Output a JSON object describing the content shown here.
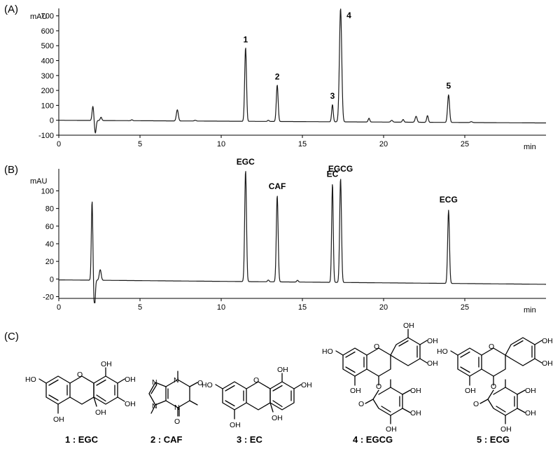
{
  "colors": {
    "trace": "#1a1a1a",
    "axis": "#000000",
    "background": "#ffffff"
  },
  "chart_data": [
    {
      "type": "line",
      "panel_label": "(A)",
      "ylabel": "mAU",
      "xlabel": "min",
      "xlim": [
        0,
        30
      ],
      "ylim": [
        -100,
        750
      ],
      "xticks": [
        0,
        5,
        10,
        15,
        20,
        25
      ],
      "yticks": [
        -100,
        0,
        100,
        200,
        300,
        400,
        500,
        600,
        700
      ],
      "baseline": {
        "start": 0,
        "end": -18
      },
      "peaks": [
        {
          "t": 2.1,
          "h": 95,
          "w": 0.05,
          "label": ""
        },
        {
          "t": 2.25,
          "h": -85,
          "w": 0.05,
          "label": ""
        },
        {
          "t": 2.6,
          "h": 22,
          "w": 0.05,
          "label": ""
        },
        {
          "t": 4.5,
          "h": 6,
          "w": 0.05,
          "label": ""
        },
        {
          "t": 7.3,
          "h": 75,
          "w": 0.06,
          "label": ""
        },
        {
          "t": 8.4,
          "h": 5,
          "w": 0.06,
          "label": ""
        },
        {
          "t": 11.5,
          "h": 495,
          "w": 0.055,
          "label": "1"
        },
        {
          "t": 12.9,
          "h": 8,
          "w": 0.05,
          "label": ""
        },
        {
          "t": 13.45,
          "h": 245,
          "w": 0.055,
          "label": "2"
        },
        {
          "t": 16.85,
          "h": 115,
          "w": 0.05,
          "label": "3"
        },
        {
          "t": 17.35,
          "h": 760,
          "w": 0.07,
          "label": "4"
        },
        {
          "t": 19.1,
          "h": 25,
          "w": 0.05,
          "label": ""
        },
        {
          "t": 20.5,
          "h": 12,
          "w": 0.06,
          "label": ""
        },
        {
          "t": 21.2,
          "h": 18,
          "w": 0.05,
          "label": ""
        },
        {
          "t": 22.0,
          "h": 40,
          "w": 0.06,
          "label": ""
        },
        {
          "t": 22.7,
          "h": 45,
          "w": 0.05,
          "label": ""
        },
        {
          "t": 24.0,
          "h": 185,
          "w": 0.06,
          "label": "5"
        },
        {
          "t": 25.4,
          "h": 6,
          "w": 0.06,
          "label": ""
        }
      ]
    },
    {
      "type": "line",
      "panel_label": "(B)",
      "ylabel": "mAU",
      "xlabel": "min",
      "xlim": [
        0,
        30
      ],
      "ylim": [
        -22,
        125
      ],
      "xticks": [
        0,
        5,
        10,
        15,
        20,
        25
      ],
      "yticks": [
        -20,
        0,
        20,
        40,
        60,
        80,
        100
      ],
      "baseline": {
        "start": -1,
        "end": -6
      },
      "peaks": [
        {
          "t": 2.05,
          "h": 90,
          "w": 0.045,
          "label": ""
        },
        {
          "t": 2.2,
          "h": -35,
          "w": 0.045,
          "label": ""
        },
        {
          "t": 2.55,
          "h": 12,
          "w": 0.06,
          "label": ""
        },
        {
          "t": 11.5,
          "h": 126,
          "w": 0.055,
          "label": "EGC"
        },
        {
          "t": 12.9,
          "h": 2,
          "w": 0.05,
          "label": ""
        },
        {
          "t": 13.45,
          "h": 98,
          "w": 0.055,
          "label": "CAF"
        },
        {
          "t": 14.7,
          "h": 2,
          "w": 0.05,
          "label": ""
        },
        {
          "t": 16.85,
          "h": 112,
          "w": 0.05,
          "label": "EC"
        },
        {
          "t": 17.35,
          "h": 118,
          "w": 0.055,
          "label": "EGCG"
        },
        {
          "t": 24.0,
          "h": 83,
          "w": 0.055,
          "label": "ECG"
        }
      ]
    }
  ],
  "structures_panel": {
    "panel_label": "(C)",
    "compounds": [
      {
        "id": "1",
        "caption": "1 : EGC"
      },
      {
        "id": "2",
        "caption": "2 : CAF"
      },
      {
        "id": "3",
        "caption": "3 : EC"
      },
      {
        "id": "4",
        "caption": "4 : EGCG"
      },
      {
        "id": "5",
        "caption": "5 : ECG"
      }
    ],
    "atom_labels": {
      "hydroxyl": "OH",
      "hydroxyl_left": "HO",
      "oxygen": "O",
      "nitrogen": "N"
    }
  }
}
